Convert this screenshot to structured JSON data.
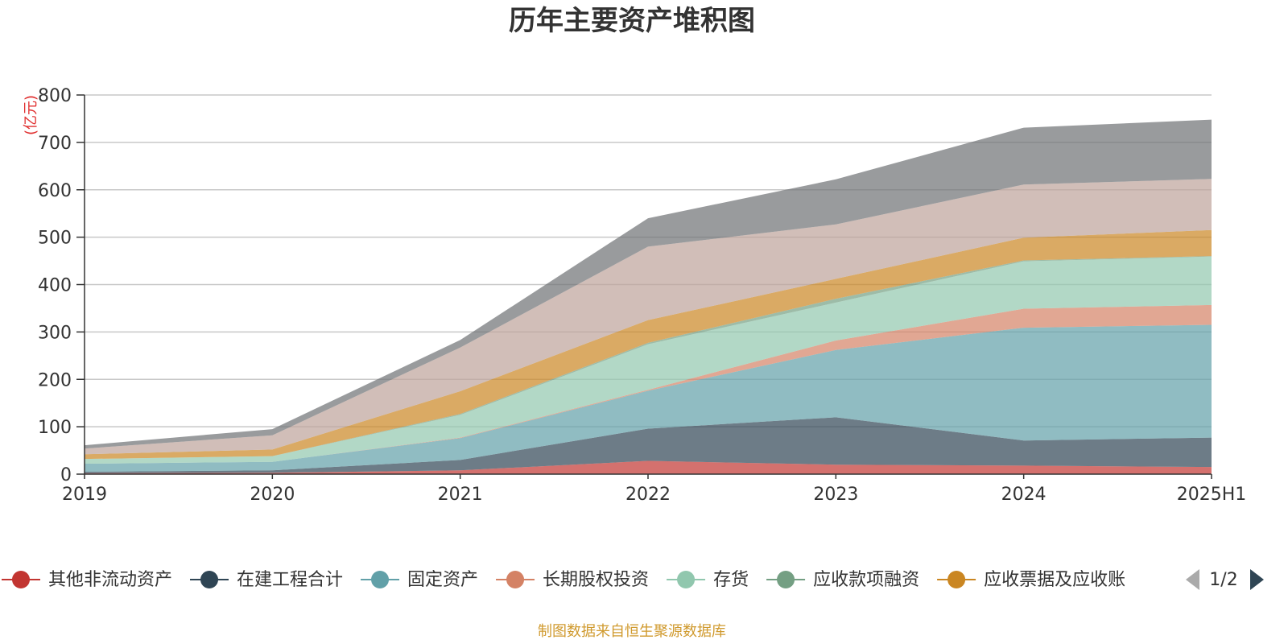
{
  "chart_data": {
    "type": "area",
    "stacked": true,
    "title": "历年主要资产堆积图",
    "unit_label": "(亿元)",
    "source_note": "制图数据来自恒生聚源数据库",
    "x": [
      "2019",
      "2020",
      "2021",
      "2022",
      "2023",
      "2024",
      "2025H1"
    ],
    "ylim": [
      0,
      800
    ],
    "yticks": [
      0,
      100,
      200,
      300,
      400,
      500,
      600,
      700,
      800
    ],
    "grid": true,
    "legend_position": "bottom",
    "legend_page": "1/2",
    "series": [
      {
        "name": "其他非流动资产",
        "color": "#c23531",
        "values": [
          2,
          3,
          8,
          28,
          20,
          18,
          15
        ]
      },
      {
        "name": "在建工程合计",
        "color": "#2f4554",
        "values": [
          3,
          5,
          22,
          68,
          100,
          53,
          62
        ]
      },
      {
        "name": "固定资产",
        "color": "#61a0a8",
        "values": [
          17,
          18,
          46,
          80,
          142,
          238,
          238
        ]
      },
      {
        "name": "长期股权投资",
        "color": "#d48265",
        "values": [
          0,
          0,
          1,
          2,
          20,
          40,
          42
        ]
      },
      {
        "name": "存货",
        "color": "#91c7ae",
        "values": [
          10,
          12,
          48,
          96,
          80,
          100,
          102
        ]
      },
      {
        "name": "应收款项融资",
        "color": "#749f83",
        "values": [
          0,
          0,
          2,
          3,
          8,
          2,
          1
        ]
      },
      {
        "name": "应收票据及应收账",
        "color": "#ca8622",
        "values": [
          10,
          14,
          48,
          48,
          42,
          48,
          55
        ]
      },
      {
        "name": "",
        "color": "#bda29a",
        "values": [
          12,
          30,
          92,
          155,
          115,
          112,
          108
        ]
      },
      {
        "name": "",
        "color": "#6e7074",
        "values": [
          7,
          13,
          16,
          60,
          95,
          120,
          125
        ]
      }
    ],
    "legend_visible": [
      "其他非流动资产",
      "在建工程合计",
      "固定资产",
      "长期股权投资",
      "存货",
      "应收款项融资",
      "应收票据及应收账"
    ]
  }
}
